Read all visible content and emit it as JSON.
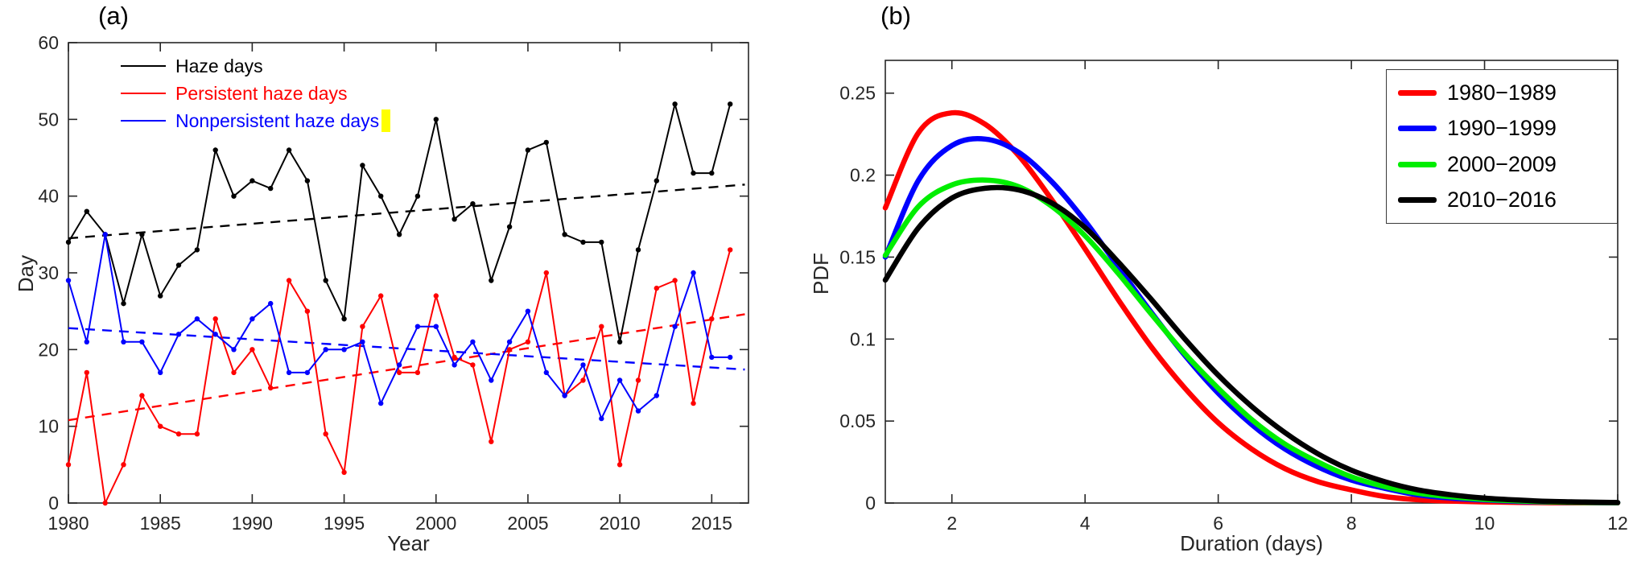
{
  "figure": {
    "background": "#ffffff"
  },
  "chart_data": [
    {
      "type": "line",
      "title": "(a)",
      "xlabel": "Year",
      "ylabel": "Day",
      "xlim": [
        1980,
        2017
      ],
      "ylim": [
        0,
        60
      ],
      "xticks": [
        1980,
        1985,
        1990,
        1995,
        2000,
        2005,
        2010,
        2015
      ],
      "yticks": [
        0,
        10,
        20,
        30,
        40,
        50,
        60
      ],
      "legend_position": "top-left",
      "legend_highlight_color": "#ffff00",
      "x": [
        1980,
        1981,
        1982,
        1983,
        1984,
        1985,
        1986,
        1987,
        1988,
        1989,
        1990,
        1991,
        1992,
        1993,
        1994,
        1995,
        1996,
        1997,
        1998,
        1999,
        2000,
        2001,
        2002,
        2003,
        2004,
        2005,
        2006,
        2007,
        2008,
        2009,
        2010,
        2011,
        2012,
        2013,
        2014,
        2015,
        2016
      ],
      "series": [
        {
          "name": "Haze days",
          "color": "#000000",
          "marker": "dot",
          "values": [
            34,
            38,
            35,
            26,
            35,
            27,
            31,
            33,
            46,
            40,
            42,
            41,
            46,
            42,
            29,
            24,
            44,
            40,
            35,
            40,
            50,
            37,
            39,
            29,
            36,
            46,
            47,
            35,
            34,
            34,
            21,
            33,
            42,
            52,
            43,
            43,
            52
          ]
        },
        {
          "name": "Persistent haze days",
          "color": "#ff0000",
          "marker": "dot",
          "values": [
            5,
            17,
            0,
            5,
            14,
            10,
            9,
            9,
            24,
            17,
            20,
            15,
            29,
            25,
            9,
            4,
            23,
            27,
            17,
            17,
            27,
            19,
            18,
            8,
            20,
            21,
            30,
            14,
            16,
            23,
            5,
            16,
            28,
            29,
            13,
            24,
            33
          ]
        },
        {
          "name": "Nonpersistent haze days",
          "color": "#0000ff",
          "marker": "dot",
          "values": [
            29,
            21,
            35,
            21,
            21,
            17,
            22,
            24,
            22,
            20,
            24,
            26,
            17,
            17,
            20,
            20,
            21,
            13,
            18,
            23,
            23,
            18,
            21,
            16,
            21,
            25,
            17,
            14,
            18,
            11,
            16,
            12,
            14,
            23,
            30,
            19,
            19
          ]
        }
      ],
      "trend_lines": [
        {
          "name": "Haze days trend",
          "color": "#000000",
          "x": [
            1980,
            2016.8
          ],
          "y": [
            34.5,
            41.5
          ]
        },
        {
          "name": "Persistent haze days trend",
          "color": "#ff0000",
          "x": [
            1980,
            2016.8
          ],
          "y": [
            10.8,
            24.6
          ]
        },
        {
          "name": "Nonpersistent haze days trend",
          "color": "#0000ff",
          "x": [
            1980,
            2016.8
          ],
          "y": [
            22.8,
            17.4
          ]
        }
      ]
    },
    {
      "type": "line",
      "title": "(b)",
      "xlabel": "Duration (days)",
      "ylabel": "PDF",
      "xlim": [
        1,
        12
      ],
      "ylim": [
        0,
        0.27
      ],
      "xticks": [
        2,
        4,
        6,
        8,
        10,
        12
      ],
      "yticks": [
        0,
        0.05,
        0.1,
        0.15,
        0.2,
        0.25
      ],
      "legend_position": "top-right",
      "x": [
        1,
        1.5,
        2,
        2.5,
        3,
        3.5,
        4,
        4.5,
        5,
        5.5,
        6,
        6.5,
        7,
        7.5,
        8,
        8.5,
        9,
        9.5,
        10,
        10.5,
        11,
        11.5,
        12
      ],
      "series": [
        {
          "name": "1980−1989",
          "color": "#ff0000",
          "values": [
            0.18,
            0.226,
            0.238,
            0.231,
            0.212,
            0.185,
            0.155,
            0.124,
            0.095,
            0.07,
            0.049,
            0.033,
            0.021,
            0.013,
            0.008,
            0.004,
            0.002,
            0.0012,
            0.0007,
            0.0004,
            0.0002,
            0.0001,
            0.0001
          ]
        },
        {
          "name": "1990−1999",
          "color": "#0000ff",
          "values": [
            0.15,
            0.197,
            0.218,
            0.222,
            0.214,
            0.196,
            0.172,
            0.144,
            0.116,
            0.09,
            0.067,
            0.048,
            0.033,
            0.022,
            0.014,
            0.009,
            0.005,
            0.003,
            0.0018,
            0.001,
            0.0006,
            0.0003,
            0.0002
          ]
        },
        {
          "name": "2000−2009",
          "color": "#00ee00",
          "values": [
            0.151,
            0.181,
            0.194,
            0.197,
            0.193,
            0.181,
            0.163,
            0.14,
            0.115,
            0.091,
            0.07,
            0.051,
            0.036,
            0.025,
            0.016,
            0.01,
            0.006,
            0.0038,
            0.0022,
            0.0013,
            0.0007,
            0.0004,
            0.0002
          ]
        },
        {
          "name": "2010−2016",
          "color": "#000000",
          "values": [
            0.136,
            0.168,
            0.186,
            0.192,
            0.191,
            0.183,
            0.168,
            0.147,
            0.124,
            0.1,
            0.078,
            0.059,
            0.043,
            0.03,
            0.02,
            0.013,
            0.008,
            0.005,
            0.003,
            0.0018,
            0.001,
            0.0006,
            0.0003
          ]
        }
      ]
    }
  ]
}
